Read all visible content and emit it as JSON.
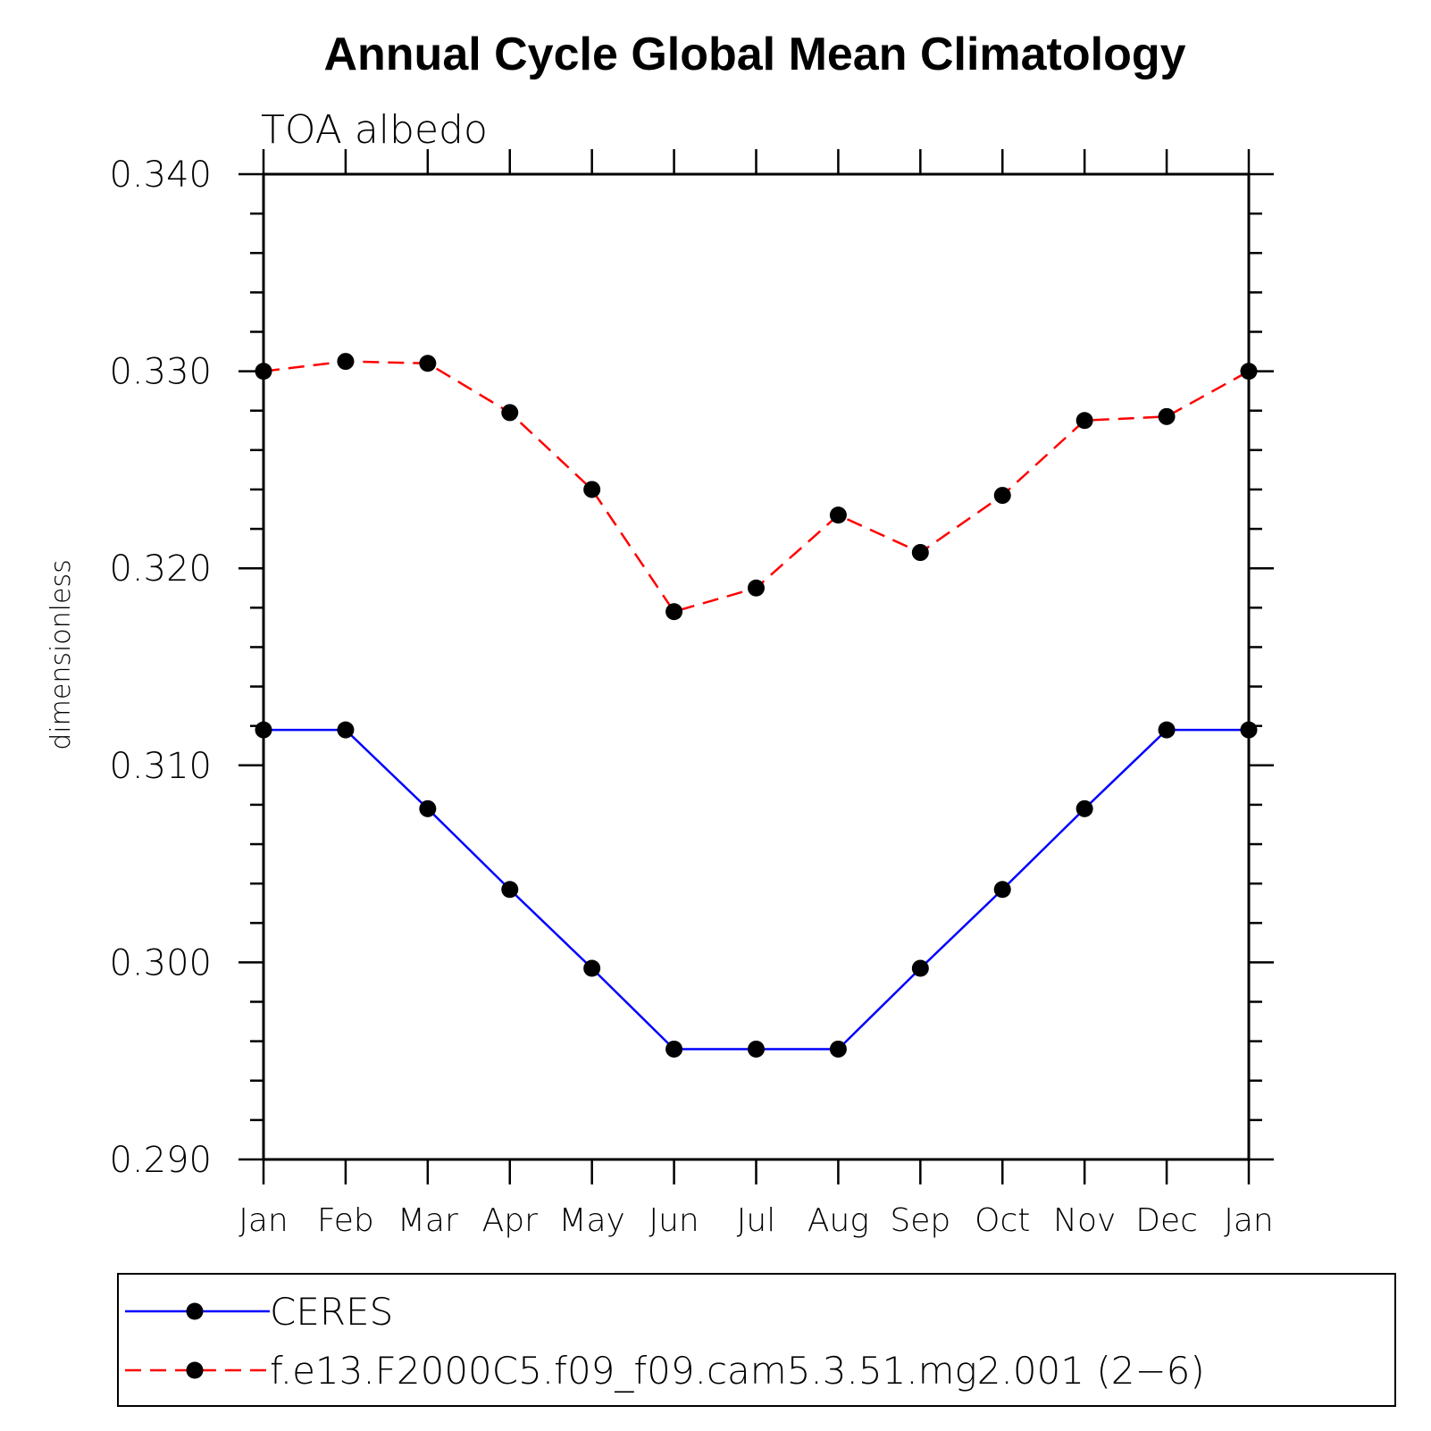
{
  "chart_data": {
    "type": "line",
    "title": "Annual Cycle Global Mean Climatology",
    "subtitle": "TOA albedo",
    "xlabel": "",
    "ylabel": "dimensionless",
    "categories": [
      "Jan",
      "Feb",
      "Mar",
      "Apr",
      "May",
      "Jun",
      "Jul",
      "Aug",
      "Sep",
      "Oct",
      "Nov",
      "Dec",
      "Jan"
    ],
    "ylim": [
      0.29,
      0.34
    ],
    "yticks": [
      "0.290",
      "0.300",
      "0.310",
      "0.320",
      "0.330",
      "0.340"
    ],
    "ytick_values": [
      0.29,
      0.3,
      0.31,
      0.32,
      0.33,
      0.34
    ],
    "grid": false,
    "legend_position": "bottom",
    "series": [
      {
        "name": "CERES",
        "color": "#0000ff",
        "line_style": "solid",
        "marker": "filled-circle",
        "values": [
          0.3118,
          0.3118,
          0.3078,
          0.3037,
          0.2997,
          0.2956,
          0.2956,
          0.2956,
          0.2997,
          0.3037,
          0.3078,
          0.3118,
          0.3118
        ]
      },
      {
        "name": "f.e13.F2000C5.f09_f09.cam5.3.51.mg2.001 (2−6)",
        "color": "#ff0000",
        "line_style": "dashed",
        "marker": "filled-circle",
        "values": [
          0.33,
          0.3305,
          0.3304,
          0.3279,
          0.324,
          0.3178,
          0.319,
          0.3227,
          0.3208,
          0.3237,
          0.3275,
          0.3277,
          0.33
        ]
      }
    ]
  }
}
